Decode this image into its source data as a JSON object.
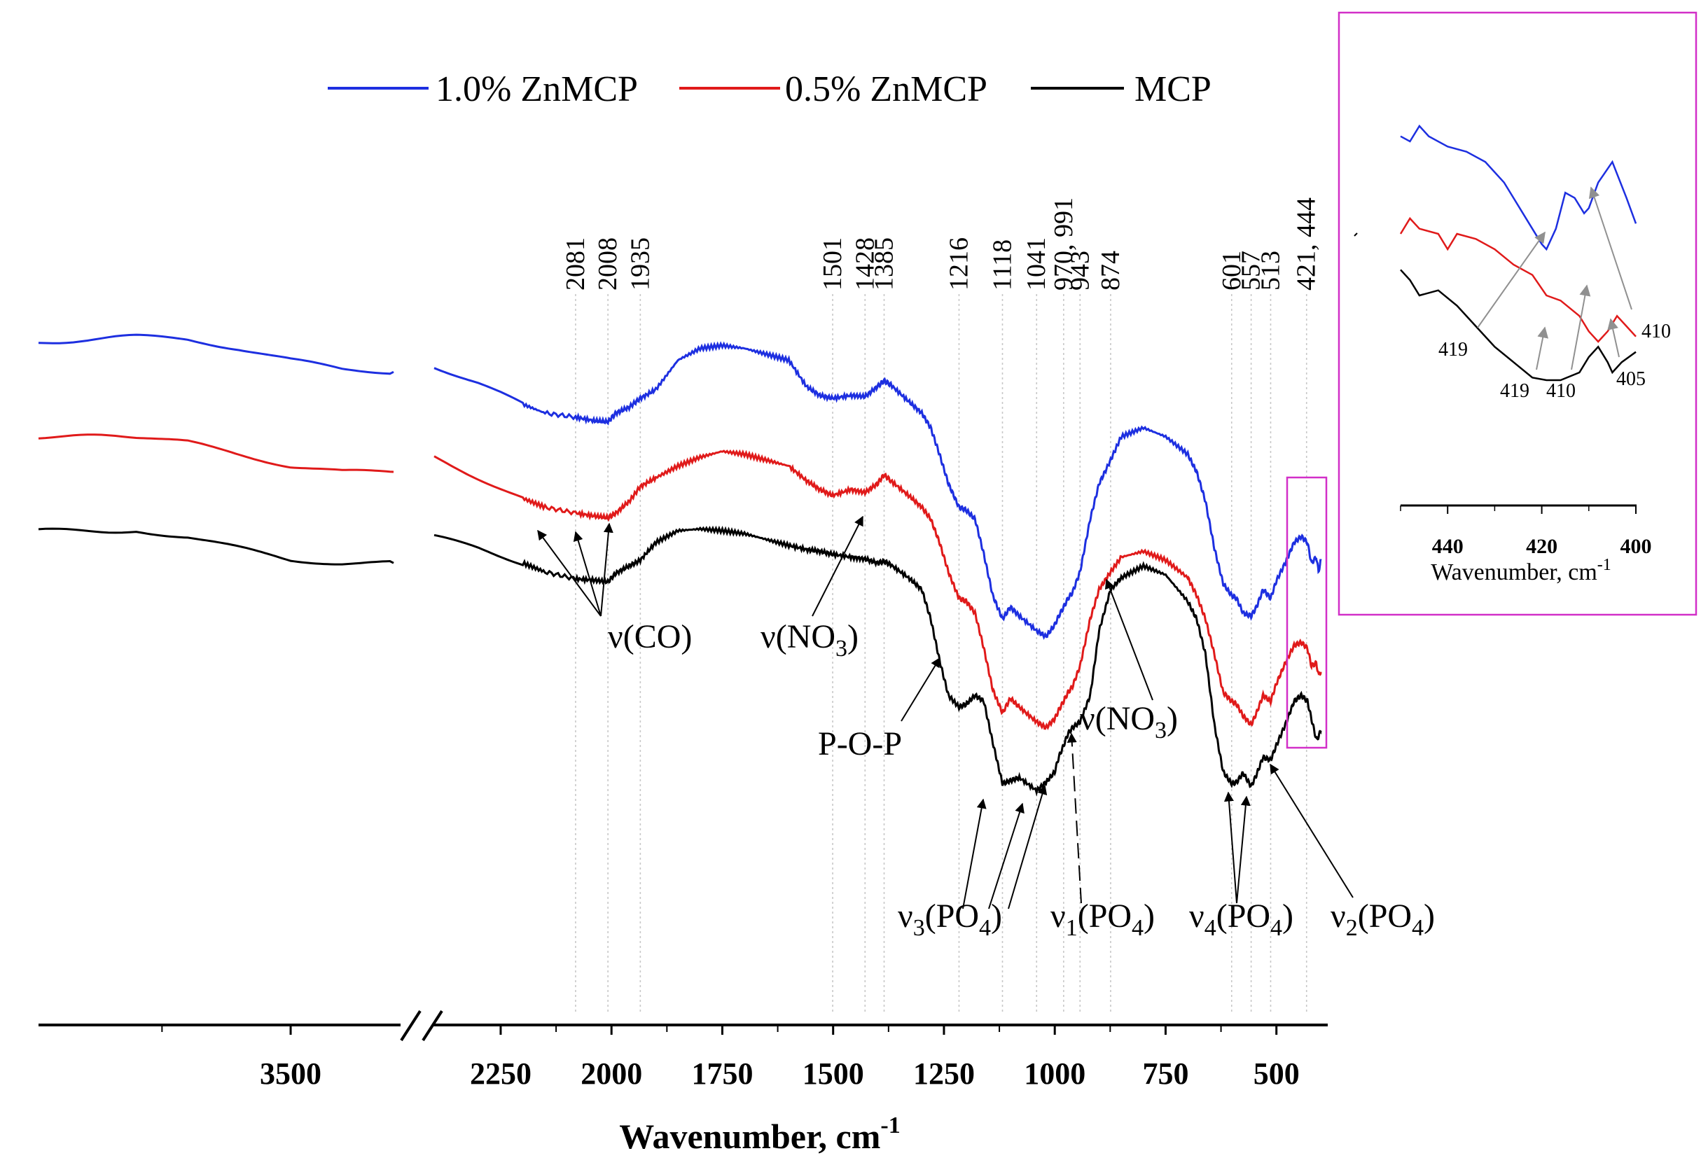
{
  "chart_data": {
    "type": "line",
    "xlabel": "Wavenumber, cm",
    "xlabel_sup": "-1",
    "axis_break": true,
    "x_ticks": [
      3500,
      2250,
      2000,
      1750,
      1500,
      1250,
      1000,
      750,
      500
    ],
    "xlim_left": [
      3990,
      3300
    ],
    "xlim_right": [
      2400,
      400
    ],
    "grid": false,
    "legend_position": "top-center",
    "colors": {
      "blue": "#1d2fe0",
      "red": "#e01a1a",
      "black": "#000000",
      "inset_box": "#d22fc8",
      "guide": "#c8c8c8",
      "gray_arrow": "#909090"
    },
    "series": [
      {
        "name": "1.0% ZnMCP",
        "color": "#1d2fe0",
        "x": [
          3990,
          3800,
          3700,
          3600,
          3500,
          3400,
          3300,
          2400,
          2300,
          2200,
          2150,
          2081,
          2040,
          2008,
          1990,
          1960,
          1935,
          1900,
          1850,
          1800,
          1750,
          1700,
          1650,
          1600,
          1560,
          1530,
          1501,
          1460,
          1428,
          1400,
          1385,
          1370,
          1330,
          1300,
          1280,
          1260,
          1240,
          1216,
          1200,
          1180,
          1160,
          1140,
          1118,
          1100,
          1080,
          1041,
          1020,
          1000,
          991,
          980,
          970,
          960,
          943,
          920,
          900,
          874,
          850,
          800,
          750,
          700,
          680,
          660,
          640,
          620,
          601,
          590,
          575,
          557,
          545,
          530,
          513,
          500,
          480,
          460,
          444,
          430,
          421,
          410,
          405,
          400
        ],
        "y": [
          87,
          88,
          87.5,
          86,
          84,
          82.5,
          82,
          83,
          80,
          76.5,
          75,
          74.3,
          73.7,
          73.5,
          75,
          76,
          77.5,
          79,
          84,
          86,
          86.5,
          86,
          85,
          84,
          79.5,
          78,
          77.5,
          78,
          77.8,
          79.5,
          80.5,
          79.8,
          77,
          75,
          72.5,
          68,
          63,
          59,
          58.5,
          57,
          51,
          44,
          40,
          42,
          40.5,
          38,
          37,
          39,
          40.5,
          42,
          43.5,
          44.5,
          48,
          57,
          63,
          67,
          71,
          72.5,
          71,
          68,
          65,
          60,
          52,
          46,
          44,
          43.5,
          41,
          40.5,
          42,
          45,
          43.5,
          46.5,
          49.5,
          53,
          54,
          53,
          49.5,
          50.5,
          48,
          50
        ],
        "label": ""
      },
      {
        "name": "0.5% ZnMCP",
        "color": "#e01a1a",
        "x": [
          3990,
          3800,
          3700,
          3600,
          3500,
          3400,
          3300,
          2400,
          2300,
          2200,
          2150,
          2081,
          2040,
          2008,
          1990,
          1960,
          1935,
          1900,
          1850,
          1800,
          1750,
          1700,
          1650,
          1600,
          1560,
          1530,
          1501,
          1460,
          1428,
          1400,
          1385,
          1370,
          1330,
          1300,
          1280,
          1260,
          1240,
          1216,
          1200,
          1180,
          1160,
          1140,
          1118,
          1100,
          1080,
          1041,
          1020,
          1000,
          991,
          980,
          970,
          960,
          943,
          920,
          900,
          874,
          850,
          800,
          750,
          700,
          680,
          660,
          640,
          620,
          601,
          590,
          575,
          557,
          545,
          530,
          513,
          500,
          480,
          460,
          444,
          430,
          421,
          410,
          405,
          400
        ],
        "y": [
          71,
          71,
          70,
          68,
          66,
          65,
          65,
          67.5,
          64,
          60.5,
          59,
          58,
          57.5,
          57.2,
          58,
          60,
          62.5,
          64,
          66,
          67.5,
          68.5,
          68,
          67,
          66,
          63.5,
          62,
          61,
          62,
          61.5,
          63,
          64.5,
          63.5,
          61,
          59,
          57,
          53,
          48,
          43.5,
          43,
          41,
          35,
          28,
          24,
          26.5,
          25,
          22.5,
          21.5,
          23,
          24.5,
          26,
          27.5,
          28.5,
          32,
          40,
          45,
          48,
          50.5,
          51.5,
          50,
          47,
          44,
          40,
          34,
          27.5,
          26,
          25.5,
          23.5,
          22,
          24,
          27,
          26,
          29,
          32.5,
          35.5,
          36,
          35,
          32,
          32.5,
          30.5,
          31
        ],
        "label": ""
      },
      {
        "name": "MCP",
        "color": "#000000",
        "x": [
          3990,
          3800,
          3700,
          3600,
          3500,
          3400,
          3300,
          2400,
          2300,
          2200,
          2150,
          2081,
          2040,
          2008,
          1990,
          1960,
          1935,
          1900,
          1850,
          1800,
          1750,
          1700,
          1650,
          1600,
          1560,
          1530,
          1501,
          1460,
          1428,
          1400,
          1385,
          1370,
          1330,
          1300,
          1280,
          1260,
          1240,
          1216,
          1200,
          1180,
          1160,
          1140,
          1118,
          1100,
          1080,
          1041,
          1020,
          1000,
          991,
          980,
          970,
          960,
          943,
          920,
          900,
          874,
          850,
          800,
          750,
          700,
          680,
          660,
          640,
          620,
          601,
          590,
          575,
          557,
          545,
          530,
          513,
          500,
          480,
          460,
          444,
          430,
          421,
          410,
          405,
          400
        ],
        "y": [
          55,
          55,
          54,
          52,
          50,
          49.5,
          49.5,
          54,
          52,
          49.5,
          48,
          46.8,
          46.6,
          46.3,
          47.8,
          49,
          50,
          53,
          55,
          55.3,
          55,
          54.5,
          53.5,
          52.5,
          51.8,
          51.5,
          51,
          50.5,
          50.2,
          49.5,
          49.8,
          49.2,
          47,
          45,
          40,
          33,
          27,
          25,
          25.5,
          27,
          26,
          19,
          12,
          12.5,
          13,
          10.8,
          12.2,
          14,
          16.5,
          18.5,
          20.5,
          21.5,
          22.5,
          27,
          38,
          45,
          47,
          49,
          47.5,
          43,
          40,
          34,
          22,
          14,
          12,
          12.2,
          13.8,
          11.5,
          13.5,
          16.5,
          16,
          18.5,
          22,
          26,
          27,
          26,
          23,
          19.5,
          20,
          21
        ],
        "label": ""
      }
    ],
    "ylim": [
      0,
      100
    ],
    "peak_labels": [
      "2081",
      "2008",
      "1935",
      "1501",
      "1428",
      "1385",
      "1216",
      "1118",
      "1041",
      "970, 991",
      "943",
      "874",
      "601",
      "557",
      "513",
      "421, 444"
    ],
    "peak_positions": [
      2081,
      2008,
      1935,
      1501,
      1428,
      1385,
      1216,
      1118,
      1041,
      980,
      943,
      874,
      601,
      557,
      513,
      432
    ],
    "annotations": [
      {
        "text": "ν(CO)",
        "sub": ""
      },
      {
        "text": "ν(NO",
        "sub": "3",
        "close": ")"
      },
      {
        "text": "P-O-P",
        "sub": ""
      },
      {
        "text": "ν(NO",
        "sub": "3",
        "close": ")"
      },
      {
        "text": "ν",
        "sub": "3",
        "mid": "(PO",
        "sub2": "4",
        "close": ")"
      },
      {
        "text": "ν",
        "sub": "1",
        "mid": "(PO",
        "sub2": "4",
        "close": ")"
      },
      {
        "text": "ν",
        "sub": "4",
        "mid": "(PO",
        "sub2": "4",
        "close": ")"
      },
      {
        "text": "ν",
        "sub": "2",
        "mid": "(PO",
        "sub2": "4",
        "close": ")"
      }
    ],
    "inset": {
      "xlabel": "Wavenumber, cm",
      "xlabel_sup": "-1",
      "x_ticks": [
        440,
        420,
        400
      ],
      "xlim": [
        450,
        400
      ],
      "series": [
        {
          "color": "#1d2fe0",
          "x": [
            450,
            448,
            446,
            444,
            440,
            436,
            432,
            428,
            424,
            420,
            419,
            417,
            415,
            413,
            411,
            410,
            408,
            405,
            402,
            400
          ],
          "y": [
            88,
            87,
            90,
            88,
            86,
            85,
            83,
            79,
            73,
            67,
            66,
            70,
            77,
            76,
            73,
            74,
            79,
            83,
            76,
            71
          ]
        },
        {
          "color": "#e01a1a",
          "x": [
            450,
            448,
            446,
            442,
            440,
            438,
            434,
            430,
            426,
            422,
            419,
            416,
            412,
            410,
            408,
            406,
            404,
            402,
            400
          ],
          "y": [
            69,
            72,
            70,
            69,
            66,
            69,
            68,
            66,
            63,
            61,
            57,
            56,
            53,
            50,
            48,
            50,
            53,
            51,
            49
          ]
        },
        {
          "color": "#000000",
          "x": [
            450,
            448,
            446,
            442,
            438,
            434,
            430,
            426,
            422,
            419,
            416,
            412,
            410,
            408,
            406,
            405,
            403,
            400
          ],
          "y": [
            62,
            60,
            57,
            58,
            55,
            51,
            47,
            44,
            41,
            40.5,
            40.5,
            42,
            45,
            47,
            44,
            42,
            44,
            46
          ]
        }
      ],
      "peak_labels": [
        "419",
        "419",
        "410",
        "405",
        "410"
      ]
    }
  }
}
